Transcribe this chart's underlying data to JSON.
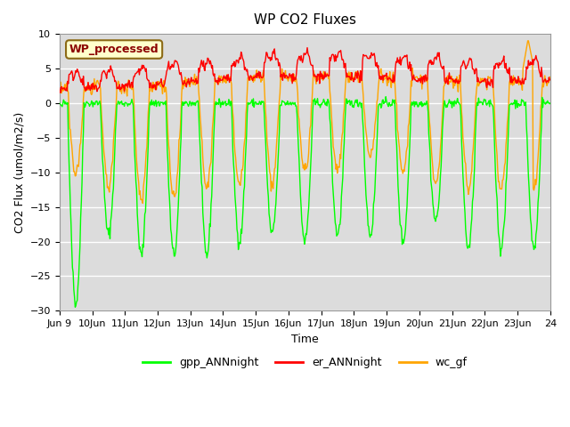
{
  "title": "WP CO2 Fluxes",
  "xlabel": "Time",
  "ylabel": "CO2 Flux (umol/m2/s)",
  "ylim": [
    -30,
    10
  ],
  "yticks": [
    -30,
    -25,
    -20,
    -15,
    -10,
    -5,
    0,
    5,
    10
  ],
  "colors": {
    "gpp": "#00FF00",
    "er": "#FF0000",
    "wc": "#FFA500",
    "background": "#DCDCDC",
    "grid": "#FFFFFF",
    "annotation_bg": "#FFFFCC",
    "annotation_border": "#8B6914",
    "annotation_text": "#8B0000"
  },
  "legend_labels": [
    "gpp_ANNnight",
    "er_ANNnight",
    "wc_gf"
  ],
  "annotation_text": "WP_processed",
  "xtick_labels": [
    "Jun 9 ",
    "Jun\n10",
    "11Jun",
    "12Jun",
    "13Jun",
    "14Jun",
    "15Jun",
    "16Jun",
    "17Jun",
    "18Jun",
    "19Jun",
    "20Jun",
    "21Jun",
    "22Jun",
    "23Jun",
    "24"
  ],
  "num_days": 15,
  "gpp_depths": [
    -29,
    -19,
    -22,
    -22,
    -22,
    -20,
    -19,
    -20,
    -19,
    -19,
    -20,
    -17,
    -21,
    -21,
    -21
  ],
  "er_base": [
    3.0,
    3.2,
    3.5,
    4.0,
    4.5,
    5.0,
    5.5,
    5.5,
    5.5,
    5.5,
    5.0,
    5.0,
    4.5,
    4.5,
    4.5
  ],
  "wc_depths": [
    -12,
    -14,
    -16,
    -16,
    -15,
    -15,
    -15,
    -13,
    -13,
    -11,
    -13,
    -15,
    -15,
    -15,
    -15
  ],
  "line_width": 1.0,
  "title_fontsize": 11,
  "axis_fontsize": 9,
  "tick_fontsize": 8
}
